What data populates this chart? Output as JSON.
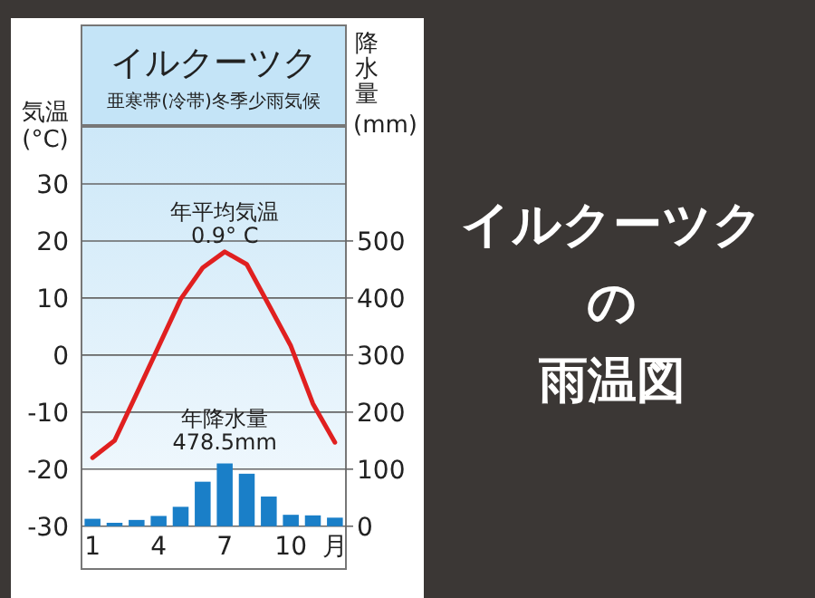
{
  "chart_data": {
    "type": "bar",
    "title": "イルクーツク",
    "subtitle": "亜寒帯(冷帯)冬季少雨気候",
    "ylabel": "気温(°C)",
    "y2label": "降水量(mm)",
    "categories": [
      "1",
      null,
      null,
      "4",
      null,
      null,
      "7",
      null,
      null,
      "10",
      null,
      "月"
    ],
    "series": [
      {
        "axis": "y2",
        "color": "#1a7fc8",
        "values": [
          13,
          6,
          11,
          18,
          34,
          78,
          110,
          92,
          52,
          20,
          19,
          15
        ]
      },
      {
        "type": "line",
        "axis": "y",
        "color": "#e02020",
        "values": [
          -18,
          -15,
          -6.8,
          1.5,
          9.8,
          15.3,
          18.1,
          15.9,
          8.8,
          1.6,
          -8.5,
          -15.3
        ]
      }
    ],
    "ylim": [
      -37.5,
      40
    ],
    "yticks": [
      -30,
      -20,
      -10,
      0,
      10,
      20,
      30
    ],
    "y2lim": [
      -75,
      700
    ],
    "y2ticks": [
      0,
      100,
      200,
      300,
      400,
      500
    ],
    "grid": "y",
    "annotations": [
      "年平均気温 0.9° C",
      "年降水量 478.5mm",
      "イルクーツクの雨温図"
    ]
  }
}
